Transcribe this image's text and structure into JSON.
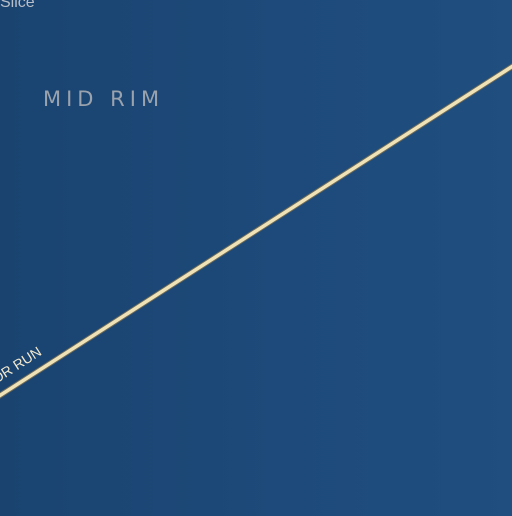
{
  "map": {
    "poi_label": "Slice",
    "region_label": "MID RIM",
    "road_label": "OR RUN",
    "colors": {
      "background": "#1d4a7a",
      "road_fill": "#efe2b6",
      "road_casing": "#6b6a5a",
      "region_text": "#9aa3ad",
      "road_text": "#f3ead0"
    }
  }
}
